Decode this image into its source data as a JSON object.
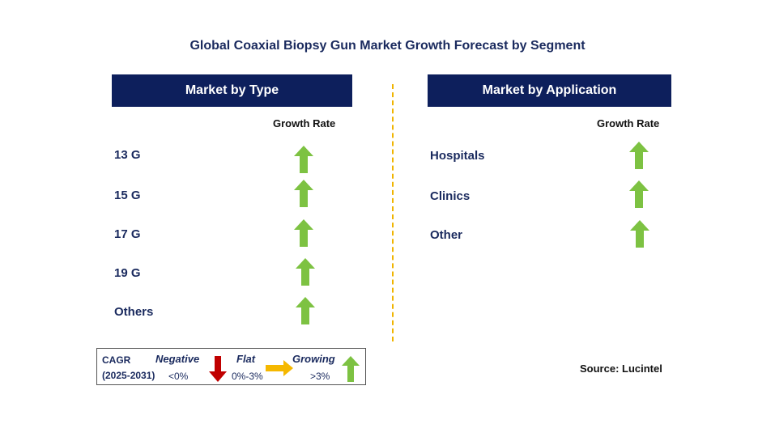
{
  "title": "Global Coaxial Biopsy Gun Market Growth Forecast by Segment",
  "left_panel": {
    "header": "Market by Type",
    "growth_rate_label": "Growth Rate",
    "items": [
      {
        "label": "13 G",
        "trend": "growing"
      },
      {
        "label": "15 G",
        "trend": "growing"
      },
      {
        "label": "17 G",
        "trend": "growing"
      },
      {
        "label": "19 G",
        "trend": "growing"
      },
      {
        "label": "Others",
        "trend": "growing"
      }
    ]
  },
  "right_panel": {
    "header": "Market by Application",
    "growth_rate_label": "Growth Rate",
    "items": [
      {
        "label": "Hospitals",
        "trend": "growing"
      },
      {
        "label": "Clinics",
        "trend": "growing"
      },
      {
        "label": "Other",
        "trend": "growing"
      }
    ]
  },
  "legend": {
    "cagr_label": "CAGR",
    "period": "(2025-2031)",
    "negative_label": "Negative",
    "negative_range": "<0%",
    "flat_label": "Flat",
    "flat_range": "0%-3%",
    "growing_label": "Growing",
    "growing_range": ">3%"
  },
  "source": "Source: Lucintel",
  "colors": {
    "header_bg": "#0d1f5c",
    "growing": "#7dc242",
    "negative": "#c00000",
    "flat": "#f5b800",
    "divider": "#f0b400"
  }
}
